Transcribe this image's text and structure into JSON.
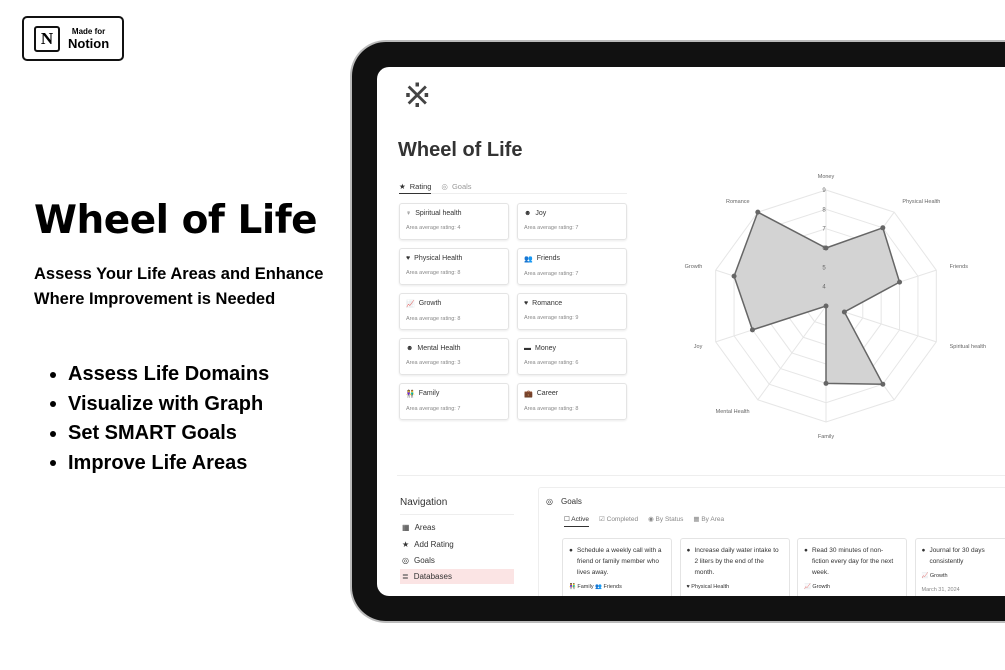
{
  "badge": {
    "logo_letter": "N",
    "line1": "Made for",
    "line2": "Notion"
  },
  "hero": {
    "title": "Wheel of Life",
    "subtitle": "Assess Your Life Areas and Enhance Where Improvement is Needed",
    "bullets": [
      "Assess Life Domains",
      "Visualize with Graph",
      "Set SMART Goals",
      "Improve Life Areas"
    ]
  },
  "page": {
    "logo_icon": "wheel-icon",
    "logo_glyph": "※",
    "title": "Wheel of Life",
    "tabs": [
      {
        "label": "Rating",
        "icon": "★"
      },
      {
        "label": "Goals",
        "icon": "◎"
      }
    ]
  },
  "areas": [
    {
      "name": "Spiritual health",
      "icon": "♀",
      "rating": "Area average rating: 4"
    },
    {
      "name": "Joy",
      "icon": "☻",
      "rating": "Area average rating: 7"
    },
    {
      "name": "Physical Health",
      "icon": "♥",
      "rating": "Area average rating: 8"
    },
    {
      "name": "Friends",
      "icon": "👥",
      "rating": "Area average rating: 7"
    },
    {
      "name": "Growth",
      "icon": "📈",
      "rating": "Area average rating: 8"
    },
    {
      "name": "Romance",
      "icon": "♥",
      "rating": "Area average rating: 9"
    },
    {
      "name": "Mental Health",
      "icon": "☻",
      "rating": "Area average rating: 3"
    },
    {
      "name": "Money",
      "icon": "▬",
      "rating": "Area average rating: 6"
    },
    {
      "name": "Family",
      "icon": "👫",
      "rating": "Area average rating: 7"
    },
    {
      "name": "Career",
      "icon": "💼",
      "rating": "Area average rating: 8"
    }
  ],
  "chart_data": {
    "type": "radar",
    "axes": [
      "Money",
      "Physical Health",
      "Friends",
      "Spiritual health",
      "",
      "Family",
      "Mental Health",
      "Joy",
      "Growth",
      "Romance"
    ],
    "values": [
      6,
      8,
      7,
      4,
      8,
      7,
      3,
      7,
      8,
      9
    ],
    "rmin": 3,
    "rmax": 9,
    "ticks": [
      4,
      5,
      6,
      7,
      8,
      9
    ],
    "fill": "#d3d3d3",
    "stroke": "#666666",
    "grid": true
  },
  "navigation": {
    "title": "Navigation",
    "items": [
      {
        "label": "Areas",
        "icon": "▦"
      },
      {
        "label": "Add Rating",
        "icon": "★"
      },
      {
        "label": "Goals",
        "icon": "◎"
      },
      {
        "label": "Databases",
        "icon": "≣"
      }
    ]
  },
  "goals": {
    "title": "Goals",
    "icon": "◎",
    "tabs": [
      {
        "label": "Active",
        "icon": "☐"
      },
      {
        "label": "Completed",
        "icon": "☑"
      },
      {
        "label": "By Status",
        "icon": "◉"
      },
      {
        "label": "By Area",
        "icon": "▦"
      }
    ],
    "cards": [
      {
        "text": "Schedule a weekly call with a friend or family member who lives away.",
        "tags": "👫 Family  👥 Friends",
        "date": ""
      },
      {
        "text": "Increase daily water intake to 2 liters by the end of the month.",
        "tags": "♥ Physical Health",
        "date": ""
      },
      {
        "text": "Read 30 minutes of non-fiction every day for the next week.",
        "tags": "📈 Growth",
        "date": ""
      },
      {
        "text": "Journal for 30 days consistently",
        "tags": "📈 Growth",
        "date": "March 31, 2024"
      }
    ]
  }
}
